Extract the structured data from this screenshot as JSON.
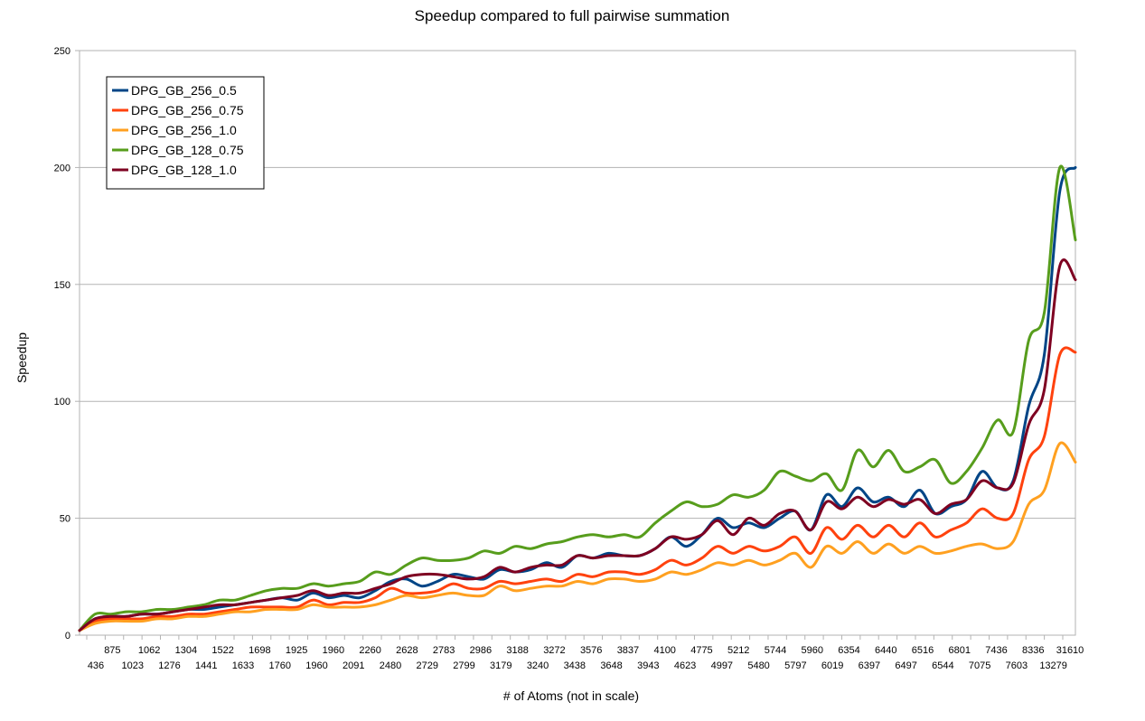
{
  "chart_data": {
    "type": "line",
    "title": "Speedup compared to full pairwise summation",
    "xlabel": "# of Atoms (not in scale)",
    "ylabel": "Speedup",
    "ylim": [
      0,
      250
    ],
    "yticks": [
      0,
      50,
      100,
      150,
      200,
      250
    ],
    "grid": "horizontal",
    "legend": "top-left",
    "x_tick_labels_upper": [
      "875",
      "1062",
      "1304",
      "1522",
      "1698",
      "1925",
      "1960",
      "2260",
      "2628",
      "2783",
      "2986",
      "3188",
      "3272",
      "3576",
      "3837",
      "4100",
      "4775",
      "5212",
      "5744",
      "5960",
      "6354",
      "6440",
      "6516",
      "6801",
      "7436",
      "8336",
      "31610"
    ],
    "x_tick_labels_lower": [
      "436",
      "1023",
      "1276",
      "1441",
      "1633",
      "1760",
      "1960",
      "2091",
      "2480",
      "2729",
      "2799",
      "3179",
      "3240",
      "3438",
      "3648",
      "3943",
      "4623",
      "4997",
      "5480",
      "5797",
      "6019",
      "6397",
      "6497",
      "6544",
      "7075",
      "7603",
      "13279"
    ],
    "series": [
      {
        "name": "DPG_GB_256_0.5",
        "color": "#004586",
        "values": [
          2,
          7,
          8,
          8,
          9,
          9,
          10,
          11,
          11,
          12,
          13,
          14,
          15,
          16,
          15,
          18,
          16,
          17,
          16,
          19,
          23,
          24,
          21,
          23,
          26,
          25,
          24,
          28,
          27,
          28,
          31,
          29,
          34,
          33,
          35,
          34,
          34,
          37,
          42,
          38,
          43,
          50,
          46,
          48,
          46,
          50,
          53,
          45,
          60,
          55,
          63,
          57,
          59,
          55,
          62,
          52,
          55,
          58,
          70,
          63,
          66,
          98,
          120,
          190,
          200
        ]
      },
      {
        "name": "DPG_GB_256_0.75",
        "color": "#ff420e",
        "values": [
          2,
          6,
          7,
          7,
          7,
          8,
          8,
          9,
          9,
          10,
          11,
          12,
          12,
          12,
          12,
          15,
          13,
          14,
          14,
          16,
          20,
          18,
          18,
          19,
          22,
          20,
          20,
          23,
          22,
          23,
          24,
          23,
          26,
          25,
          27,
          27,
          26,
          28,
          32,
          30,
          33,
          38,
          35,
          38,
          36,
          38,
          42,
          35,
          46,
          41,
          47,
          42,
          47,
          42,
          48,
          42,
          45,
          48,
          54,
          50,
          52,
          75,
          85,
          120,
          121
        ]
      },
      {
        "name": "DPG_GB_256_1.0",
        "color": "#ffa020",
        "values": [
          2,
          5,
          6,
          6,
          6,
          7,
          7,
          8,
          8,
          9,
          10,
          10,
          11,
          11,
          11,
          13,
          12,
          12,
          12,
          13,
          15,
          17,
          16,
          17,
          18,
          17,
          17,
          21,
          19,
          20,
          21,
          21,
          23,
          22,
          24,
          24,
          23,
          24,
          27,
          26,
          28,
          31,
          30,
          32,
          30,
          32,
          35,
          29,
          38,
          35,
          40,
          35,
          39,
          35,
          38,
          35,
          36,
          38,
          39,
          37,
          40,
          56,
          62,
          82,
          74
        ]
      },
      {
        "name": "DPG_GB_128_0.75",
        "color": "#579d1c",
        "values": [
          2,
          9,
          9,
          10,
          10,
          11,
          11,
          12,
          13,
          15,
          15,
          17,
          19,
          20,
          20,
          22,
          21,
          22,
          23,
          27,
          26,
          30,
          33,
          32,
          32,
          33,
          36,
          35,
          38,
          37,
          39,
          40,
          42,
          43,
          42,
          43,
          42,
          48,
          53,
          57,
          55,
          56,
          60,
          59,
          62,
          70,
          68,
          66,
          69,
          62,
          79,
          72,
          79,
          70,
          72,
          75,
          65,
          70,
          80,
          92,
          87,
          126,
          138,
          200,
          169
        ]
      },
      {
        "name": "DPG_GB_128_1.0",
        "color": "#7e0021",
        "values": [
          2,
          7,
          8,
          8,
          9,
          9,
          10,
          11,
          12,
          13,
          13,
          14,
          15,
          16,
          17,
          19,
          17,
          18,
          18,
          20,
          22,
          25,
          26,
          26,
          25,
          24,
          25,
          29,
          27,
          29,
          30,
          30,
          34,
          33,
          34,
          34,
          34,
          37,
          42,
          41,
          43,
          49,
          43,
          50,
          47,
          52,
          53,
          45,
          57,
          54,
          59,
          55,
          58,
          56,
          58,
          52,
          56,
          58,
          66,
          63,
          65,
          90,
          105,
          158,
          152
        ]
      }
    ]
  }
}
